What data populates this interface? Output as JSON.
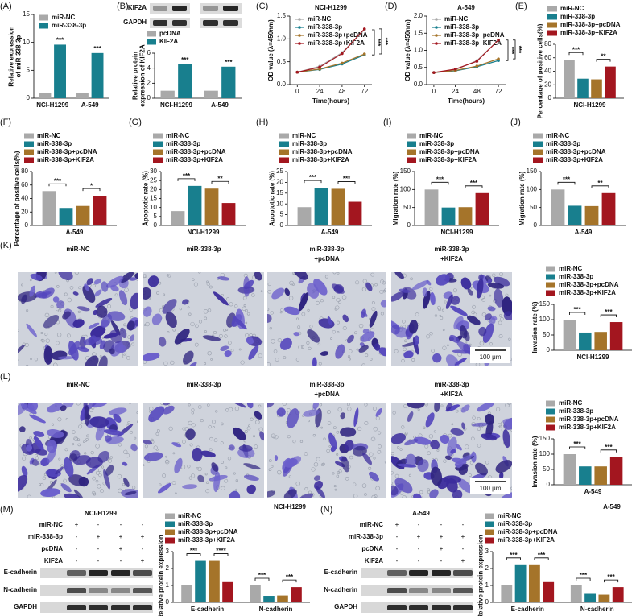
{
  "panel_labels": [
    "(A)",
    "(B)",
    "(C)",
    "(D)",
    "(E)",
    "(F)",
    "(G)",
    "(H)",
    "(I)",
    "(J)",
    "(K)",
    "(L)",
    "(M)",
    "(N)"
  ],
  "chart_data": [
    {
      "type": "bar",
      "categories": [
        "NCI-H1299",
        "A-549"
      ],
      "series": [
        {
          "name": "miR-NC",
          "color": "#a9a9a9",
          "values": [
            1,
            1
          ]
        },
        {
          "name": "miR-338-3p",
          "color": "#187f8e",
          "values": [
            9.6,
            8.1
          ]
        }
      ],
      "ylabel": [
        "Relative expression",
        "of miR-338-3p"
      ],
      "ylim": [
        0,
        15
      ],
      "yticks": [
        0,
        5,
        10,
        15
      ],
      "legend": "upper left",
      "annotations": [
        "***",
        "***"
      ]
    },
    {
      "type": "bar",
      "categories": [
        "NCI-H1299",
        "A-549"
      ],
      "series": [
        {
          "name": "pcDNA",
          "color": "#a9a9a9",
          "values": [
            1,
            1
          ]
        },
        {
          "name": "KIF2A",
          "color": "#187f8e",
          "values": [
            4.5,
            4.2
          ]
        }
      ],
      "ylabel": [
        "Relative protein",
        "expression of KIF2A"
      ],
      "ylim": [
        0,
        6
      ],
      "yticks": [
        0,
        2,
        4,
        6
      ],
      "legend": "top",
      "annotations": [
        "***",
        "***"
      ]
    },
    {
      "type": "line",
      "title": "NCI-H1299",
      "x": [
        0,
        24,
        48,
        72
      ],
      "xlim": [
        -8,
        80
      ],
      "xticks": [
        0,
        24,
        48,
        72
      ],
      "xlabel": "Time(hours)",
      "ylabel": "OD value (λ=450nm)",
      "ylim": [
        0,
        1.5
      ],
      "yticks": [
        {
          "value": 0,
          "label": "0.0"
        },
        {
          "value": 0.5,
          "label": "0.5"
        },
        {
          "value": 1,
          "label": "1.0"
        },
        {
          "value": 1.5,
          "label": "1.5"
        }
      ],
      "legend": "upper left",
      "annotations": [
        "***",
        "***"
      ],
      "series": [
        {
          "name": "miR-NC",
          "color": "#a9a9a9",
          "values": [
            0.27,
            0.4,
            0.7,
            1.2
          ]
        },
        {
          "name": "miR-338-3p",
          "color": "#187f8e",
          "values": [
            0.27,
            0.33,
            0.45,
            0.65
          ]
        },
        {
          "name": "miR-338-3p+pcDNA",
          "color": "#a5742a",
          "values": [
            0.27,
            0.34,
            0.47,
            0.67
          ]
        },
        {
          "name": "miR-338-3p+KIF2A",
          "color": "#a3161f",
          "values": [
            0.27,
            0.38,
            0.68,
            1.22
          ]
        }
      ]
    },
    {
      "type": "line",
      "title": "A-549",
      "x": [
        0,
        24,
        48,
        72
      ],
      "xlim": [
        -8,
        80
      ],
      "xticks": [
        0,
        24,
        48,
        72
      ],
      "xlabel": "Time(hours)",
      "ylabel": "OD value (λ=450nm)",
      "ylim": [
        0,
        2
      ],
      "yticks": [
        {
          "value": 0,
          "label": "0.0"
        },
        {
          "value": 0.5,
          "label": "0.5"
        },
        {
          "value": 1,
          "label": "1.0"
        },
        {
          "value": 1.5,
          "label": "1.5"
        },
        {
          "value": 2,
          "label": "2.0"
        }
      ],
      "legend": "upper left",
      "annotations": [
        "***",
        "***"
      ],
      "series": [
        {
          "name": "miR-NC",
          "color": "#a9a9a9",
          "values": [
            0.35,
            0.43,
            0.7,
            1.3
          ]
        },
        {
          "name": "miR-338-3p",
          "color": "#187f8e",
          "values": [
            0.35,
            0.4,
            0.52,
            0.7
          ]
        },
        {
          "name": "miR-338-3p+pcDNA",
          "color": "#a5742a",
          "values": [
            0.35,
            0.41,
            0.54,
            0.75
          ]
        },
        {
          "name": "miR-338-3p+KIF2A",
          "color": "#a3161f",
          "values": [
            0.35,
            0.45,
            0.68,
            1.3
          ]
        }
      ]
    },
    {
      "type": "bar",
      "categories": [
        "NCI-H1299"
      ],
      "ylabel": "Percentage of positive cells(%)",
      "ylim": [
        0,
        80
      ],
      "yticks": [
        0,
        20,
        40,
        60,
        80
      ],
      "legend": "top",
      "annotations": [
        "***",
        "**"
      ],
      "series": [
        {
          "name": "miR-NC",
          "color": "#a9a9a9",
          "values": [
            57
          ]
        },
        {
          "name": "miR-338-3p",
          "color": "#187f8e",
          "values": [
            29
          ]
        },
        {
          "name": "miR-338-3p+pcDNA",
          "color": "#a5742a",
          "values": [
            28
          ]
        },
        {
          "name": "miR-338-3p+KIF2A",
          "color": "#a3161f",
          "values": [
            47
          ]
        }
      ]
    },
    {
      "type": "bar",
      "categories": [
        "A-549"
      ],
      "ylabel": "Percentage of positive cells(%)",
      "ylim": [
        0,
        80
      ],
      "yticks": [
        0,
        20,
        40,
        60,
        80
      ],
      "legend": "top",
      "annotations": [
        "***",
        "*"
      ],
      "series": [
        {
          "name": "miR-NC",
          "color": "#a9a9a9",
          "values": [
            51
          ]
        },
        {
          "name": "miR-338-3p",
          "color": "#187f8e",
          "values": [
            26
          ]
        },
        {
          "name": "miR-338-3p+pcDNA",
          "color": "#a5742a",
          "values": [
            29
          ]
        },
        {
          "name": "miR-338-3p+KIF2A",
          "color": "#a3161f",
          "values": [
            44
          ]
        }
      ]
    },
    {
      "type": "bar",
      "categories": [
        "NCI-H1299"
      ],
      "ylabel": "Apoptotic rate (%)",
      "ylim": [
        0,
        30
      ],
      "yticks": [
        0,
        5,
        10,
        15,
        20,
        25,
        30
      ],
      "legend": "top",
      "annotations": [
        "***",
        "**"
      ],
      "series": [
        {
          "name": "miR-NC",
          "color": "#a9a9a9",
          "values": [
            8
          ]
        },
        {
          "name": "miR-338-3p",
          "color": "#187f8e",
          "values": [
            22
          ]
        },
        {
          "name": "miR-338-3p+pcDNA",
          "color": "#a5742a",
          "values": [
            20.5
          ]
        },
        {
          "name": "miR-338-3p+KIF2A",
          "color": "#a3161f",
          "values": [
            12.5
          ]
        }
      ]
    },
    {
      "type": "bar",
      "categories": [
        "A-549"
      ],
      "ylabel": "Apoptotic rate (%)",
      "ylim": [
        0,
        25
      ],
      "yticks": [
        0,
        5,
        10,
        15,
        20,
        25
      ],
      "legend": "top",
      "annotations": [
        "***",
        "***"
      ],
      "series": [
        {
          "name": "miR-NC",
          "color": "#a9a9a9",
          "values": [
            8.5
          ]
        },
        {
          "name": "miR-338-3p",
          "color": "#187f8e",
          "values": [
            17.5
          ]
        },
        {
          "name": "miR-338-3p+pcDNA",
          "color": "#a5742a",
          "values": [
            17
          ]
        },
        {
          "name": "miR-338-3p+KIF2A",
          "color": "#a3161f",
          "values": [
            11
          ]
        }
      ]
    },
    {
      "type": "bar",
      "categories": [
        "NCI-H1299"
      ],
      "ylabel": "Migration rate (%)",
      "ylim": [
        0,
        150
      ],
      "yticks": [
        0,
        50,
        100,
        150
      ],
      "legend": "top",
      "annotations": [
        "***",
        "***"
      ],
      "series": [
        {
          "name": "miR-NC",
          "color": "#a9a9a9",
          "values": [
            100
          ]
        },
        {
          "name": "miR-338-3p",
          "color": "#187f8e",
          "values": [
            50
          ]
        },
        {
          "name": "miR-338-3p+pcDNA",
          "color": "#a5742a",
          "values": [
            51
          ]
        },
        {
          "name": "miR-338-3p+KIF2A",
          "color": "#a3161f",
          "values": [
            90
          ]
        }
      ]
    },
    {
      "type": "bar",
      "categories": [
        "A-549"
      ],
      "ylabel": "Migration rate (%)",
      "ylim": [
        0,
        150
      ],
      "yticks": [
        0,
        50,
        100,
        150
      ],
      "legend": "top",
      "annotations": [
        "***",
        "**"
      ],
      "series": [
        {
          "name": "miR-NC",
          "color": "#a9a9a9",
          "values": [
            100
          ]
        },
        {
          "name": "miR-338-3p",
          "color": "#187f8e",
          "values": [
            55
          ]
        },
        {
          "name": "miR-338-3p+pcDNA",
          "color": "#a5742a",
          "values": [
            54
          ]
        },
        {
          "name": "miR-338-3p+KIF2A",
          "color": "#a3161f",
          "values": [
            90
          ]
        }
      ]
    },
    {
      "type": "bar",
      "categories": [
        "NCI-H1299"
      ],
      "ylabel": "Invasion rate (%)",
      "ylim": [
        0,
        150
      ],
      "yticks": [
        0,
        50,
        100,
        150
      ],
      "legend": "top",
      "annotations": [
        "***",
        "***"
      ],
      "series": [
        {
          "name": "miR-NC",
          "color": "#a9a9a9",
          "values": [
            100
          ]
        },
        {
          "name": "miR-338-3p",
          "color": "#187f8e",
          "values": [
            58
          ]
        },
        {
          "name": "miR-338-3p+pcDNA",
          "color": "#a5742a",
          "values": [
            60
          ]
        },
        {
          "name": "miR-338-3p+KIF2A",
          "color": "#a3161f",
          "values": [
            92
          ]
        }
      ]
    },
    {
      "type": "bar",
      "categories": [
        "A-549"
      ],
      "ylabel": "Invasion rate (%)",
      "ylim": [
        0,
        150
      ],
      "yticks": [
        0,
        50,
        100,
        150
      ],
      "legend": "top",
      "annotations": [
        "***",
        "***"
      ],
      "series": [
        {
          "name": "miR-NC",
          "color": "#a9a9a9",
          "values": [
            100
          ]
        },
        {
          "name": "miR-338-3p",
          "color": "#187f8e",
          "values": [
            60
          ]
        },
        {
          "name": "miR-338-3p+pcDNA",
          "color": "#a5742a",
          "values": [
            60
          ]
        },
        {
          "name": "miR-338-3p+KIF2A",
          "color": "#a3161f",
          "values": [
            90
          ]
        }
      ]
    },
    {
      "type": "bar",
      "title": "NCI-H1299",
      "categories": [
        "E-cadherin",
        "N-cadherin"
      ],
      "ylabel": "Relative protein expression",
      "ylim": [
        0,
        3
      ],
      "yticks": [
        0,
        1,
        2,
        3
      ],
      "legend": "top",
      "annotations": [
        "***",
        "****",
        "***",
        "***"
      ],
      "series": [
        {
          "name": "miR-NC",
          "color": "#a9a9a9",
          "values": [
            1,
            1
          ]
        },
        {
          "name": "miR-338-3p",
          "color": "#187f8e",
          "values": [
            2.45,
            0.38
          ]
        },
        {
          "name": "miR-338-3p+pcDNA",
          "color": "#a5742a",
          "values": [
            2.45,
            0.4
          ]
        },
        {
          "name": "miR-338-3p+KIF2A",
          "color": "#a3161f",
          "values": [
            1.2,
            0.9
          ]
        }
      ]
    },
    {
      "type": "bar",
      "title": "A-549",
      "categories": [
        "E-cadherin",
        "N-cadherin"
      ],
      "ylabel": "Relative protein expression",
      "ylim": [
        0,
        3
      ],
      "yticks": [
        0,
        1,
        2,
        3
      ],
      "legend": "top",
      "annotations": [
        "***",
        "***",
        "***",
        "***"
      ],
      "series": [
        {
          "name": "miR-NC",
          "color": "#a9a9a9",
          "values": [
            1,
            1
          ]
        },
        {
          "name": "miR-338-3p",
          "color": "#187f8e",
          "values": [
            2.2,
            0.5
          ]
        },
        {
          "name": "miR-338-3p+pcDNA",
          "color": "#a5742a",
          "values": [
            2.2,
            0.45
          ]
        },
        {
          "name": "miR-338-3p+KIF2A",
          "color": "#a3161f",
          "values": [
            1.2,
            0.9
          ]
        }
      ]
    }
  ],
  "micrographs": [
    {
      "labels": [
        [
          "miR-NC"
        ],
        [
          "miR-338-3p"
        ],
        [
          "miR-338-3p",
          "+pcDNA"
        ],
        [
          "miR-338-3p",
          "+KIF2A"
        ]
      ],
      "scale_bar": "100 μm"
    },
    {
      "labels": [
        [
          "miR-NC"
        ],
        [
          "miR-338-3p"
        ],
        [
          "miR-338-3p",
          "+pcDNA"
        ],
        [
          "miR-338-3p",
          "+KIF2A"
        ]
      ],
      "scale_bar": "100 μm"
    }
  ],
  "blots": [
    {
      "rows": [
        "KIF2A",
        "GAPDH"
      ]
    },
    {
      "title": "NCI-H1299",
      "conditions": [
        {
          "name": "miR-NC",
          "signs": [
            "+",
            "-",
            "-",
            "-"
          ]
        },
        {
          "name": "miR-338-3p",
          "signs": [
            "-",
            "+",
            "+",
            "+"
          ]
        },
        {
          "name": "pcDNA",
          "signs": [
            "-",
            "-",
            "+",
            "-"
          ]
        },
        {
          "name": "KIF2A",
          "signs": [
            "-",
            "-",
            "-",
            "+"
          ]
        }
      ],
      "rows": [
        "E-cadherin",
        "N-cadherin",
        "GAPDH"
      ]
    },
    {
      "title": "A-549",
      "conditions": [
        {
          "name": "miR-NC",
          "signs": [
            "+",
            "-",
            "-",
            "-"
          ]
        },
        {
          "name": "miR-338-3p",
          "signs": [
            "-",
            "+",
            "+",
            "+"
          ]
        },
        {
          "name": "pcDNA",
          "signs": [
            "-",
            "-",
            "+",
            "-"
          ]
        },
        {
          "name": "KIF2A",
          "signs": [
            "-",
            "-",
            "-",
            "+"
          ]
        }
      ],
      "rows": [
        "E-cadherin",
        "N-cadherin",
        "GAPDH"
      ]
    }
  ]
}
